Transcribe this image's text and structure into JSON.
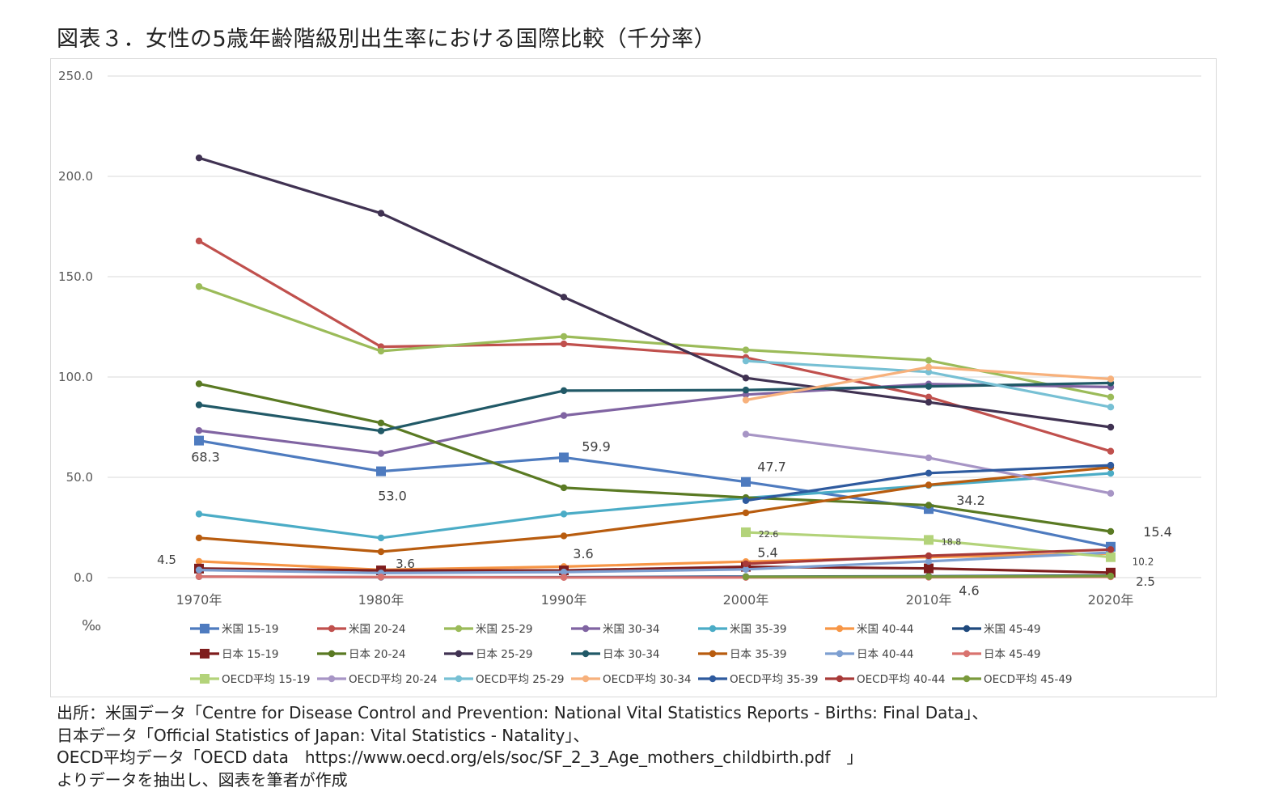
{
  "title": "図表３．女性の5歳年齢階級別出生率における国際比較（千分率）",
  "source_lines": [
    "出所：米国データ「Centre for Disease Control and Prevention: National Vital Statistics Reports - Births: Final Data」、",
    "日本データ「Official Statistics of Japan: Vital Statistics - Natality」、",
    "OECD平均データ「OECD data　https://www.oecd.org/els/soc/SF_2_3_Age_mothers_childbirth.pdf　」",
    "よりデータを抽出し、図表を筆者が作成"
  ],
  "chart_data": {
    "type": "line",
    "title": "",
    "ylabel": "‰",
    "ylim": [
      0,
      250
    ],
    "y_ticks": [
      "0.0",
      "50.0",
      "100.0",
      "150.0",
      "200.0",
      "250.0"
    ],
    "grid": true,
    "legend_position": "bottom",
    "categories": [
      "1970年",
      "1980年",
      "1990年",
      "2000年",
      "2010年",
      "2020年"
    ],
    "series": [
      {
        "name": "米国 15-19",
        "color": "#4e7bbf",
        "marker": "square",
        "values": [
          68.3,
          53.0,
          59.9,
          47.7,
          34.2,
          15.4
        ]
      },
      {
        "name": "米国 20-24",
        "color": "#c0504d",
        "marker": "circle",
        "values": [
          167.8,
          115.1,
          116.5,
          109.7,
          90.0,
          63.0
        ]
      },
      {
        "name": "米国 25-29",
        "color": "#9bbb59",
        "marker": "circle",
        "values": [
          145.1,
          112.9,
          120.2,
          113.5,
          108.3,
          90.0
        ]
      },
      {
        "name": "米国 30-34",
        "color": "#8064a2",
        "marker": "circle",
        "values": [
          73.3,
          61.9,
          80.8,
          91.2,
          96.5,
          95.0
        ]
      },
      {
        "name": "米国 35-39",
        "color": "#4bacc6",
        "marker": "circle",
        "values": [
          31.7,
          19.8,
          31.7,
          39.7,
          45.9,
          52.0
        ]
      },
      {
        "name": "米国 40-44",
        "color": "#f79646",
        "marker": "circle",
        "values": [
          8.1,
          3.9,
          5.5,
          8.0,
          10.2,
          12.0
        ]
      },
      {
        "name": "米国 45-49",
        "color": "#1f497d",
        "marker": "circle",
        "values": [
          0.5,
          0.2,
          0.2,
          0.5,
          0.7,
          1.1
        ]
      },
      {
        "name": "日本 15-19",
        "color": "#7f1d1d",
        "marker": "square",
        "values": [
          4.5,
          3.6,
          3.6,
          5.4,
          4.6,
          2.5
        ]
      },
      {
        "name": "日本 20-24",
        "color": "#5a7a23",
        "marker": "circle",
        "values": [
          96.6,
          77.1,
          44.8,
          39.9,
          36.1,
          23.0
        ]
      },
      {
        "name": "日本 25-29",
        "color": "#403252",
        "marker": "circle",
        "values": [
          209.2,
          181.6,
          139.8,
          99.5,
          87.4,
          75.0
        ]
      },
      {
        "name": "日本 30-34",
        "color": "#215967",
        "marker": "circle",
        "values": [
          86.1,
          73.1,
          93.2,
          93.5,
          95.3,
          97.0
        ]
      },
      {
        "name": "日本 35-39",
        "color": "#b85c0f",
        "marker": "circle",
        "values": [
          19.8,
          12.9,
          20.8,
          32.3,
          46.2,
          55.0
        ]
      },
      {
        "name": "日本 40-44",
        "color": "#7d9fd1",
        "marker": "circle",
        "values": [
          3.8,
          2.3,
          2.8,
          4.1,
          8.1,
          12.5
        ]
      },
      {
        "name": "日本 45-49",
        "color": "#d9736f",
        "marker": "circle",
        "values": [
          0.5,
          0.3,
          0.1,
          0.1,
          0.2,
          0.4
        ]
      },
      {
        "name": "OECD平均 15-19",
        "color": "#b3d37a",
        "marker": "square",
        "values": [
          null,
          null,
          null,
          22.6,
          18.8,
          10.2
        ]
      },
      {
        "name": "OECD平均 20-24",
        "color": "#a795c5",
        "marker": "circle",
        "values": [
          null,
          null,
          null,
          71.5,
          59.7,
          42.0
        ]
      },
      {
        "name": "OECD平均 25-29",
        "color": "#77c0d4",
        "marker": "circle",
        "values": [
          null,
          null,
          null,
          108.0,
          102.5,
          85.0
        ]
      },
      {
        "name": "OECD平均 30-34",
        "color": "#f7b17c",
        "marker": "circle",
        "values": [
          null,
          null,
          null,
          88.5,
          104.9,
          99.0
        ]
      },
      {
        "name": "OECD平均 35-39",
        "color": "#2e5a9e",
        "marker": "circle",
        "values": [
          null,
          null,
          null,
          38.4,
          52.1,
          56.0
        ]
      },
      {
        "name": "OECD平均 40-44",
        "color": "#a83a38",
        "marker": "circle",
        "values": [
          null,
          null,
          null,
          6.9,
          10.9,
          14.0
        ]
      },
      {
        "name": "OECD平均 45-49",
        "color": "#7a9a3c",
        "marker": "circle",
        "values": [
          null,
          null,
          null,
          0.4,
          0.5,
          0.8
        ]
      }
    ],
    "data_labels": [
      {
        "series": "米国 15-19",
        "values": [
          "68.3",
          "53.0",
          "59.9",
          "47.7",
          "34.2",
          "15.4"
        ]
      },
      {
        "series": "日本 15-19",
        "values": [
          "4.5",
          "3.6",
          "3.6",
          "5.4",
          "4.6",
          "2.5"
        ]
      },
      {
        "series": "OECD平均 15-19",
        "values": [
          null,
          null,
          null,
          "22.6",
          "18.8",
          "10.2"
        ]
      }
    ]
  }
}
